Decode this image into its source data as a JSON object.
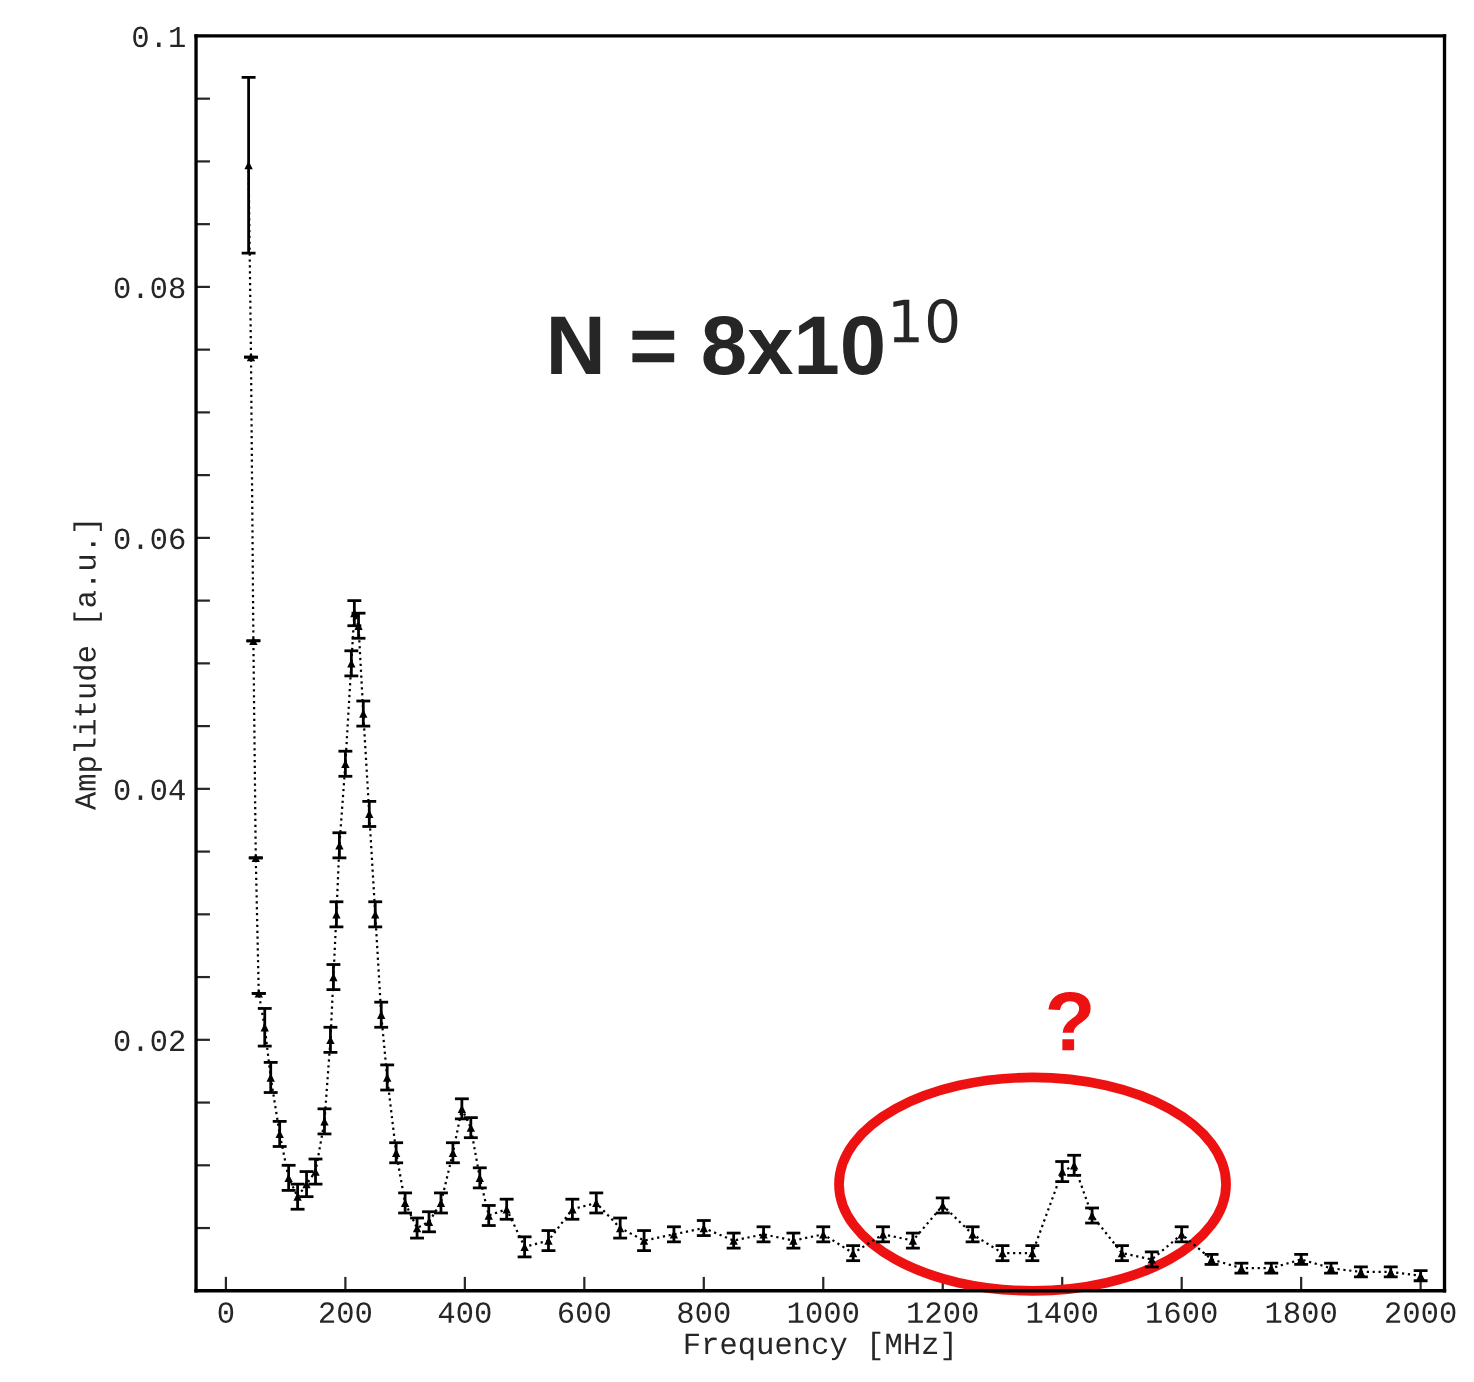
{
  "chart_data": {
    "type": "line",
    "xlabel": "Frequency [MHz]",
    "ylabel": "Amplitude [a.u.]",
    "x": [
      38,
      42,
      46,
      50,
      55,
      65,
      75,
      90,
      105,
      120,
      135,
      150,
      165,
      175,
      180,
      185,
      190,
      200,
      210,
      215,
      222,
      230,
      240,
      250,
      260,
      270,
      285,
      300,
      320,
      340,
      360,
      380,
      395,
      410,
      425,
      440,
      470,
      500,
      540,
      580,
      620,
      660,
      700,
      750,
      800,
      850,
      900,
      950,
      1000,
      1050,
      1100,
      1150,
      1200,
      1250,
      1300,
      1350,
      1400,
      1420,
      1450,
      1500,
      1550,
      1600,
      1650,
      1700,
      1750,
      1800,
      1850,
      1900,
      1950,
      2000
    ],
    "series": [
      {
        "color": "#000000",
        "values": [
          0.0897,
          0.0744,
          0.0518,
          0.0345,
          0.0237,
          0.021,
          0.017,
          0.0125,
          0.009,
          0.0075,
          0.0085,
          0.0095,
          0.0135,
          0.02,
          0.025,
          0.03,
          0.0355,
          0.042,
          0.05,
          0.054,
          0.053,
          0.046,
          0.038,
          0.03,
          0.022,
          0.017,
          0.011,
          0.007,
          0.005,
          0.0055,
          0.007,
          0.011,
          0.0145,
          0.013,
          0.009,
          0.006,
          0.0065,
          0.0035,
          0.004,
          0.0065,
          0.007,
          0.005,
          0.004,
          0.0045,
          0.005,
          0.004,
          0.0045,
          0.004,
          0.0045,
          0.003,
          0.0045,
          0.004,
          0.0068,
          0.0045,
          0.003,
          0.003,
          0.0095,
          0.01,
          0.006,
          0.003,
          0.0025,
          0.0045,
          0.0025,
          0.0018,
          0.0018,
          0.0025,
          0.0018,
          0.0015,
          0.0015,
          0.0012
        ],
        "errors": [
          0.007,
          null,
          null,
          null,
          null,
          0.0015,
          0.0012,
          0.001,
          0.001,
          0.001,
          0.001,
          0.001,
          0.001,
          0.001,
          0.001,
          0.001,
          0.001,
          0.001,
          0.001,
          0.001,
          0.001,
          0.001,
          0.001,
          0.001,
          0.001,
          0.001,
          0.0008,
          0.0008,
          0.0008,
          0.0008,
          0.0008,
          0.0008,
          0.0008,
          0.0008,
          0.0008,
          0.0008,
          0.0008,
          0.0008,
          0.0008,
          0.0008,
          0.0008,
          0.0008,
          0.0008,
          0.0006,
          0.0006,
          0.0006,
          0.0006,
          0.0006,
          0.0006,
          0.0006,
          0.0006,
          0.0006,
          0.0006,
          0.0006,
          0.0006,
          0.0006,
          0.0008,
          0.0008,
          0.0006,
          0.0006,
          0.0006,
          0.0006,
          0.0004,
          0.0004,
          0.0004,
          0.0004,
          0.0004,
          0.0004,
          0.0004,
          0.0004
        ]
      }
    ],
    "xlim": [
      -50,
      2040
    ],
    "xticks": [
      0,
      200,
      400,
      600,
      800,
      1000,
      1200,
      1400,
      1600,
      1800,
      2000
    ],
    "ylim": [
      0,
      0.1
    ],
    "yticks": [
      {
        "value": 0,
        "label": null
      },
      {
        "value": 0.005,
        "label": null
      },
      {
        "value": 0.01,
        "label": null
      },
      {
        "value": 0.015,
        "label": null
      },
      {
        "value": 0.02,
        "label": "0.02"
      },
      {
        "value": 0.025,
        "label": null
      },
      {
        "value": 0.03,
        "label": null
      },
      {
        "value": 0.035,
        "label": null
      },
      {
        "value": 0.04,
        "label": "0.04"
      },
      {
        "value": 0.045,
        "label": null
      },
      {
        "value": 0.05,
        "label": null
      },
      {
        "value": 0.055,
        "label": null
      },
      {
        "value": 0.06,
        "label": "0.06"
      },
      {
        "value": 0.065,
        "label": null
      },
      {
        "value": 0.07,
        "label": null
      },
      {
        "value": 0.075,
        "label": null
      },
      {
        "value": 0.08,
        "label": "0.08"
      },
      {
        "value": 0.085,
        "label": null
      },
      {
        "value": 0.09,
        "label": null
      },
      {
        "value": 0.095,
        "label": null
      },
      {
        "value": 0.1,
        "label": "0.1"
      }
    ],
    "grid": false,
    "marker": "triangle",
    "line_style": "dotted",
    "annotations": [
      "N = 8x10$^{10}$",
      "?"
    ]
  }
}
